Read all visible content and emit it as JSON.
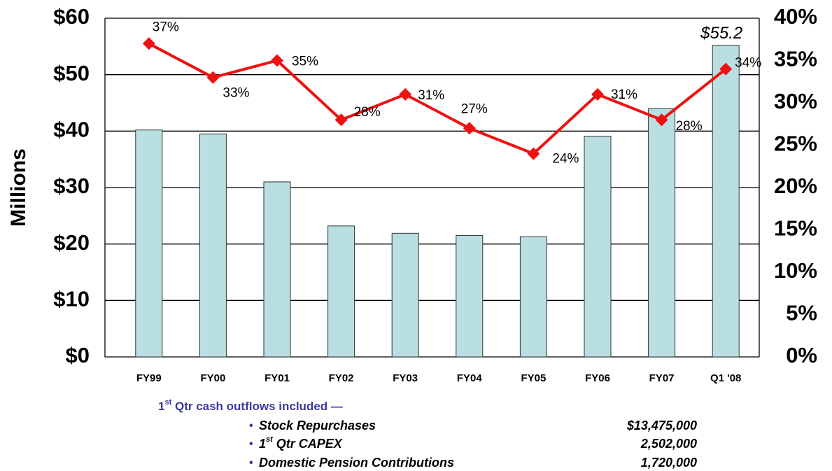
{
  "chart_data": {
    "type": "bar-line",
    "y_label": "Millions",
    "categories": [
      "FY99",
      "FY00",
      "FY01",
      "FY02",
      "FY03",
      "FY04",
      "FY05",
      "FY06",
      "FY07",
      "Q1 '08"
    ],
    "series": [
      {
        "type": "bar",
        "color": "#b9dfe2",
        "values": [
          40.2,
          39.5,
          31,
          23.2,
          21.9,
          21.5,
          21.3,
          39.1,
          44,
          55.2
        ],
        "value_labels": [
          null,
          null,
          null,
          null,
          null,
          null,
          null,
          null,
          null,
          "$55.2"
        ]
      },
      {
        "type": "line",
        "axis": "y2",
        "color": "#ee1111",
        "values": [
          37,
          33,
          35,
          28,
          31,
          27,
          24,
          31,
          28,
          34
        ],
        "value_labels": [
          "37%",
          "33%",
          "35%",
          "28%",
          "31%",
          "27%",
          "24%",
          "31%",
          "28%",
          "34%"
        ]
      }
    ],
    "ylim": [
      0,
      60
    ],
    "yticks": [
      {
        "value": 0,
        "label": "$0"
      },
      {
        "value": 10,
        "label": "$10"
      },
      {
        "value": 20,
        "label": "$20"
      },
      {
        "value": 30,
        "label": "$30"
      },
      {
        "value": 40,
        "label": "$40"
      },
      {
        "value": 50,
        "label": "$50"
      },
      {
        "value": 60,
        "label": "$60"
      }
    ],
    "y2lim": [
      0,
      40
    ],
    "y2ticks": [
      {
        "value": 0,
        "label": "0%"
      },
      {
        "value": 5,
        "label": "5%"
      },
      {
        "value": 10,
        "label": "10%"
      },
      {
        "value": 15,
        "label": "15%"
      },
      {
        "value": 20,
        "label": "20%"
      },
      {
        "value": 25,
        "label": "25%"
      },
      {
        "value": 30,
        "label": "30%"
      },
      {
        "value": 35,
        "label": "35%"
      },
      {
        "value": 40,
        "label": "40%"
      }
    ],
    "grid": true
  },
  "footnote": {
    "heading": [
      "1",
      "st",
      " Qtr cash outflows included —"
    ],
    "items": [
      {
        "label": [
          "Stock Repurchases"
        ],
        "amount": "$13,475,000"
      },
      {
        "label": [
          "1",
          "st",
          " Qtr CAPEX"
        ],
        "amount": "2,502,000"
      },
      {
        "label": [
          "Domestic Pension Contributions"
        ],
        "amount": "1,720,000"
      }
    ]
  }
}
